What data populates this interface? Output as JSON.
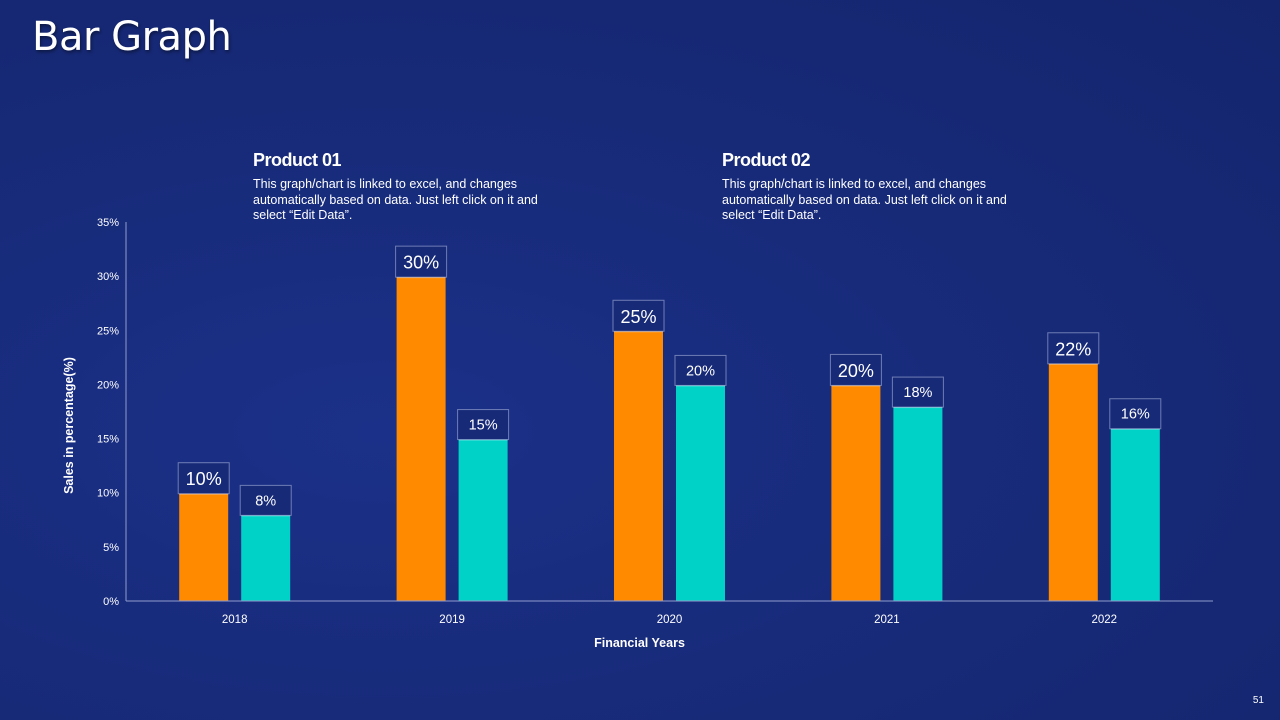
{
  "slide": {
    "title": "Bar Graph",
    "page_number": "51"
  },
  "products": [
    {
      "name": "Product 01",
      "description": "This graph/chart is linked to excel, and changes automatically based on data. Just left click on it and select “Edit Data”."
    },
    {
      "name": "Product 02",
      "description": "This graph/chart is linked to excel, and changes automatically based on data. Just left click on it and select “Edit Data”."
    }
  ],
  "colors": {
    "background": "#172a78",
    "product_01": "#ff8a00",
    "product_02": "#00d2c8",
    "axis": "#8f9ccc"
  },
  "chart_data": {
    "type": "bar",
    "title": "",
    "xlabel": "Financial Years",
    "ylabel": "Sales in percentage(%)",
    "categories": [
      "2018",
      "2019",
      "2020",
      "2021",
      "2022"
    ],
    "series": [
      {
        "name": "Product 01",
        "values": [
          10,
          30,
          25,
          20,
          22
        ],
        "labels": [
          "10%",
          "30%",
          "25%",
          "20%",
          "22%"
        ]
      },
      {
        "name": "Product 02",
        "values": [
          8,
          15,
          20,
          18,
          16
        ],
        "labels": [
          "8%",
          "15%",
          "20%",
          "18%",
          "16%"
        ]
      }
    ],
    "ylim": [
      0,
      35
    ],
    "yticks": [
      0,
      5,
      10,
      15,
      20,
      25,
      30,
      35
    ],
    "ytick_labels": [
      "0%",
      "5%",
      "10%",
      "15%",
      "20%",
      "25%",
      "30%",
      "35%"
    ],
    "grid": false,
    "legend": "none"
  }
}
